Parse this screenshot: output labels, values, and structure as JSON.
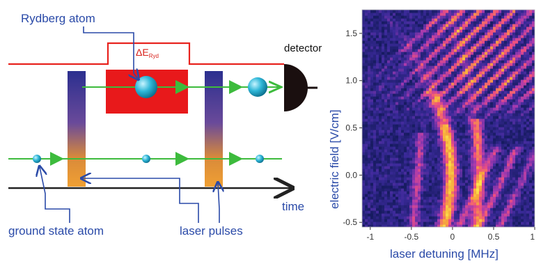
{
  "diagram": {
    "labels": {
      "rydberg_atom": "Rydberg atom",
      "delta_e": "ΔE",
      "delta_e_sub": "Ryd",
      "detector": "detector",
      "time": "time",
      "ground_state_atom": "ground state atom",
      "laser_pulses": "laser pulses"
    },
    "colors": {
      "energy_line": "#e8231e",
      "energy_box": "#e8191b",
      "beam": "#3dbb3d",
      "atom": "#2fb7d8",
      "detector": "#1a0f0f",
      "label": "#2a4aa8"
    }
  },
  "chart_data": {
    "type": "heatmap",
    "xlabel": "laser detuning [MHz]",
    "ylabel": "electric field [V/cm]",
    "xlim": [
      -1.1,
      1.0
    ],
    "ylim": [
      -0.55,
      1.75
    ],
    "x_ticks": [
      "-1",
      "-0.5",
      "0",
      "0.5",
      "1"
    ],
    "x_tick_values": [
      -1,
      -0.5,
      0,
      0.5,
      1
    ],
    "y_ticks": [
      "-0.5",
      "0.0",
      "0.5",
      "1.0",
      "1.5"
    ],
    "y_tick_values": [
      -0.5,
      0.0,
      0.5,
      1.0,
      1.5
    ],
    "colormap": [
      "#141a5c",
      "#3b2a9a",
      "#a43ab0",
      "#f0507e",
      "#f7a63c",
      "#fbe24a"
    ]
  }
}
